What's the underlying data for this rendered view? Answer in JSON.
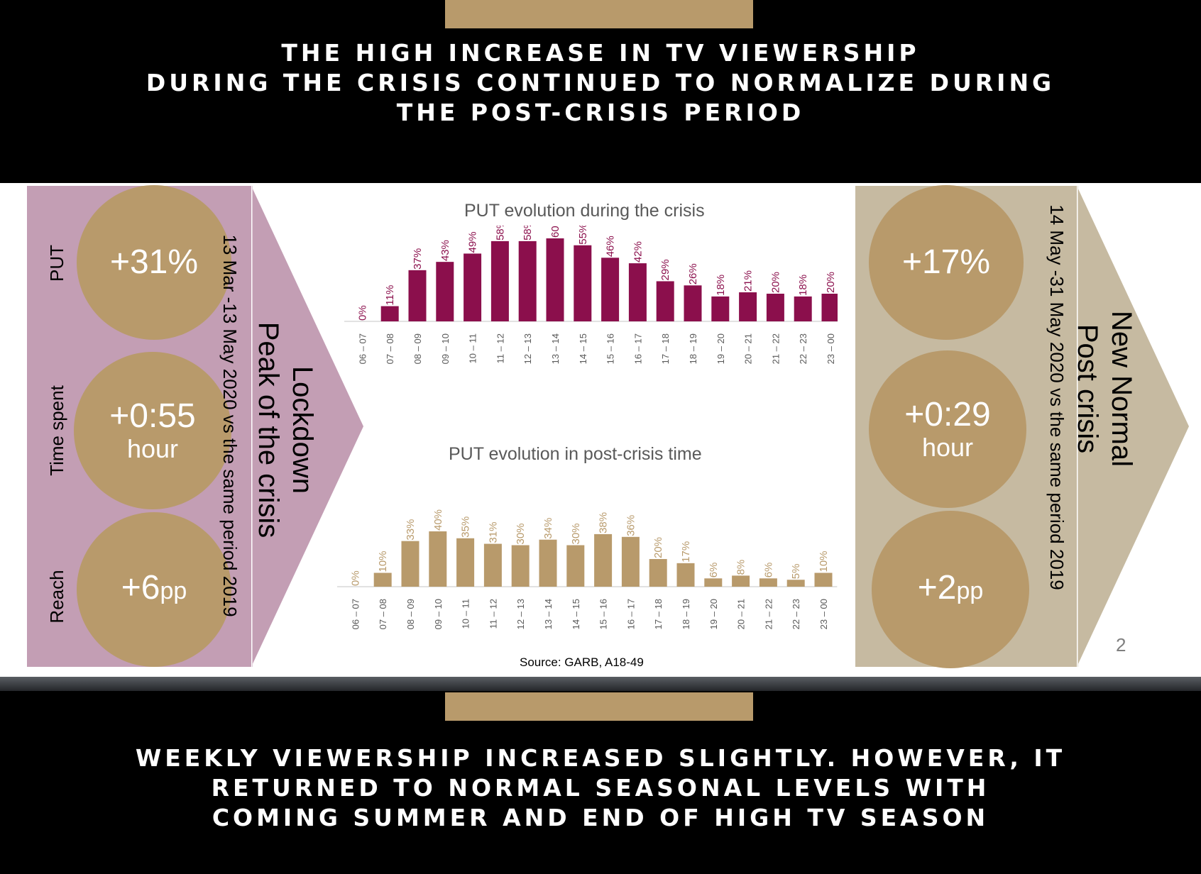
{
  "top_banner": {
    "lines": [
      "THE HIGH INCREASE IN TV VIEWERSHIP",
      "DURING THE CRISIS CONTINUED TO NORMALIZE DURING",
      "THE POST-CRISIS PERIOD"
    ]
  },
  "bottom_banner": {
    "lines": [
      "WEEKLY VIEWERSHIP INCREASED SLIGHTLY. HOWEVER, IT",
      "RETURNED TO NORMAL SEASONAL LEVELS WITH",
      "COMING SUMMER AND END OF HIGH TV SEASON"
    ]
  },
  "left_panel": {
    "labels": {
      "put": "PUT",
      "time_spent": "Time spent",
      "reach": "Reach"
    },
    "put_value": "+31%",
    "time_value": "+0:55",
    "time_unit": "hour",
    "reach_value": "+6",
    "reach_unit": "pp",
    "period": "13 Mar -13 May 2020 vs the same period 2019",
    "phase_line1": "Lockdown",
    "phase_line2": "Peak of the crisis",
    "bg_color": "#c39eb4",
    "arrow_color": "#c39eb4"
  },
  "right_panel": {
    "put_value": "+17%",
    "time_value": "+0:29",
    "time_unit": "hour",
    "reach_value": "+2",
    "reach_unit": "pp",
    "period": "14 May -31 May 2020 vs the same period 2019",
    "phase_line1": "New Normal",
    "phase_line2": "Post crisis",
    "bg_color": "#c6baa1"
  },
  "circle_color": "#b89a6b",
  "source": "Source: GARB, A18-49",
  "page_number": "2",
  "chart_data": [
    {
      "type": "bar",
      "title": "PUT evolution during the crisis",
      "categories": [
        "06 – 07",
        "07 – 08",
        "08 – 09",
        "09 – 10",
        "10 – 11",
        "11 – 12",
        "12 – 13",
        "13 – 14",
        "14 – 15",
        "15 – 16",
        "16 – 17",
        "17 – 18",
        "18 – 19",
        "19 – 20",
        "20 – 21",
        "21 – 22",
        "22 – 23",
        "23 – 00"
      ],
      "values": [
        0,
        11,
        37,
        43,
        49,
        58,
        58,
        60,
        55,
        46,
        42,
        29,
        26,
        18,
        21,
        20,
        18,
        20
      ],
      "value_labels": [
        "0%",
        "11%",
        "37%",
        "43%",
        "49%",
        "58%",
        "58%",
        "60%",
        "55%",
        "46%",
        "42%",
        "29%",
        "26%",
        "18%",
        "21%",
        "20%",
        "18%",
        "20%"
      ],
      "ylim": [
        0,
        60
      ],
      "color": "#8b0f4c",
      "grid": false
    },
    {
      "type": "bar",
      "title": "PUT evolution in post-crisis time",
      "categories": [
        "06 – 07",
        "07 – 08",
        "08 – 09",
        "09 – 10",
        "10 – 11",
        "11 – 12",
        "12 – 13",
        "13 – 14",
        "14 – 15",
        "15 – 16",
        "16 – 17",
        "17 – 18",
        "18 – 19",
        "19 – 20",
        "20 – 21",
        "21 – 22",
        "22 – 23",
        "23 – 00"
      ],
      "values": [
        0,
        10,
        33,
        40,
        35,
        31,
        30,
        34,
        30,
        38,
        36,
        20,
        17,
        6,
        8,
        6,
        5,
        10
      ],
      "value_labels": [
        "0%",
        "10%",
        "33%",
        "40%",
        "35%",
        "31%",
        "30%",
        "34%",
        "30%",
        "38%",
        "36%",
        "20%",
        "17%",
        "6%",
        "8%",
        "6%",
        "5%",
        "10%"
      ],
      "ylim": [
        0,
        40
      ],
      "color": "#b89a6b",
      "grid": false
    }
  ]
}
